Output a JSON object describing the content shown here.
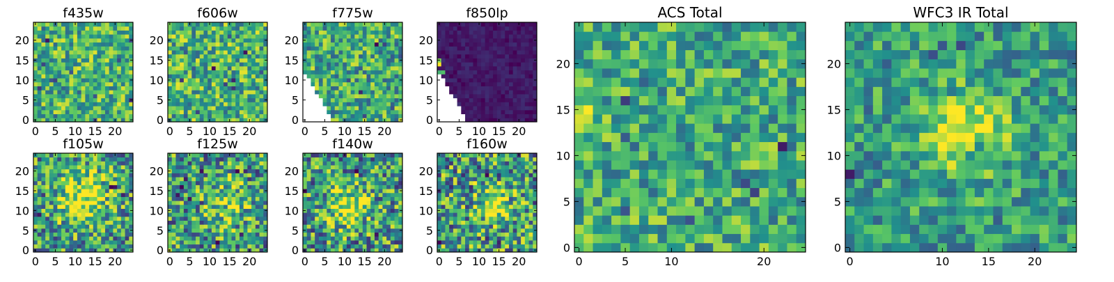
{
  "figure": {
    "colormap": "viridis",
    "colormap_stops": [
      "#440154",
      "#3b528b",
      "#21918c",
      "#5ec962",
      "#fde725"
    ]
  },
  "chart_data": [
    {
      "type": "heatmap",
      "title": "f435w",
      "grid": [
        25,
        25
      ],
      "xlim": [
        0,
        24
      ],
      "ylim": [
        0,
        24
      ],
      "xticks": [
        0,
        5,
        10,
        15,
        20
      ],
      "yticks": [
        0,
        5,
        10,
        15,
        20
      ],
      "seed": 11,
      "character": "uniform noise, mostly green-yellow",
      "mean": 0.66,
      "amplitude": 0.3,
      "blob": null
    },
    {
      "type": "heatmap",
      "title": "f606w",
      "grid": [
        25,
        25
      ],
      "xlim": [
        0,
        24
      ],
      "ylim": [
        0,
        24
      ],
      "xticks": [
        0,
        5,
        10,
        15,
        20
      ],
      "yticks": [
        0,
        5,
        10,
        15,
        20
      ],
      "seed": 23,
      "character": "uniform noise, mostly green-yellow",
      "mean": 0.65,
      "amplitude": 0.32,
      "blob": null
    },
    {
      "type": "heatmap",
      "title": "f775w",
      "grid": [
        25,
        25
      ],
      "xlim": [
        0,
        24
      ],
      "ylim": [
        0,
        24
      ],
      "xticks": [
        0,
        5,
        10,
        15,
        20
      ],
      "yticks": [
        0,
        5,
        10,
        15,
        20
      ],
      "seed": 37,
      "character": "noise with white empty wedge at lower-left",
      "mean": 0.62,
      "amplitude": 0.32,
      "blob": null,
      "mask": "lower-left-wedge",
      "mask_params": {
        "x_max": 7,
        "y_max": 12
      }
    },
    {
      "type": "heatmap",
      "title": "f850lp",
      "grid": [
        25,
        25
      ],
      "xlim": [
        0,
        24
      ],
      "ylim": [
        0,
        24
      ],
      "xticks": [
        0,
        5,
        10,
        15,
        20
      ],
      "yticks": [
        0,
        5,
        10,
        15,
        20
      ],
      "seed": 41,
      "character": "dark purple, bright pixels near wedge edge",
      "mean": 0.08,
      "amplitude": 0.06,
      "blob": null,
      "mask": "lower-left-wedge",
      "mask_params": {
        "x_max": 7,
        "y_max": 12
      },
      "bright_pixels": [
        [
          0,
          14,
          1.0
        ],
        [
          6,
          1,
          1.0
        ],
        [
          5,
          0,
          0.85
        ],
        [
          0,
          15,
          0.8
        ],
        [
          1,
          12,
          0.7
        ],
        [
          0,
          12,
          0.65
        ]
      ]
    },
    {
      "type": "heatmap",
      "title": "f105w",
      "grid": [
        25,
        25
      ],
      "xlim": [
        0,
        24
      ],
      "ylim": [
        0,
        24
      ],
      "xticks": [
        0,
        5,
        10,
        15,
        20
      ],
      "yticks": [
        0,
        5,
        10,
        15,
        20
      ],
      "seed": 53,
      "character": "noise with central bright source",
      "mean": 0.55,
      "amplitude": 0.38,
      "blob": {
        "x": 12,
        "y": 13,
        "sigma": 4.5,
        "amp": 0.45
      }
    },
    {
      "type": "heatmap",
      "title": "f125w",
      "grid": [
        25,
        25
      ],
      "xlim": [
        0,
        24
      ],
      "ylim": [
        0,
        24
      ],
      "xticks": [
        0,
        5,
        10,
        15,
        20
      ],
      "yticks": [
        0,
        5,
        10,
        15,
        20
      ],
      "seed": 67,
      "character": "noise with faint central source",
      "mean": 0.55,
      "amplitude": 0.4,
      "blob": {
        "x": 14,
        "y": 12,
        "sigma": 3.5,
        "amp": 0.35
      }
    },
    {
      "type": "heatmap",
      "title": "f140w",
      "grid": [
        25,
        25
      ],
      "xlim": [
        0,
        24
      ],
      "ylim": [
        0,
        24
      ],
      "xticks": [
        0,
        5,
        10,
        15,
        20
      ],
      "yticks": [
        0,
        5,
        10,
        15,
        20
      ],
      "seed": 79,
      "character": "noise with central source",
      "mean": 0.55,
      "amplitude": 0.4,
      "blob": {
        "x": 11,
        "y": 11,
        "sigma": 3.5,
        "amp": 0.4
      }
    },
    {
      "type": "heatmap",
      "title": "f160w",
      "grid": [
        25,
        25
      ],
      "xlim": [
        0,
        24
      ],
      "ylim": [
        0,
        24
      ],
      "xticks": [
        0,
        5,
        10,
        15,
        20
      ],
      "yticks": [
        0,
        5,
        10,
        15,
        20
      ],
      "seed": 83,
      "character": "noise with vertical central source",
      "mean": 0.55,
      "amplitude": 0.42,
      "blob": {
        "x": 14,
        "y": 12,
        "sigma": 3.2,
        "amp": 0.45
      }
    },
    {
      "type": "heatmap",
      "title": "ACS Total",
      "grid": [
        25,
        25
      ],
      "xlim": [
        0,
        24
      ],
      "ylim": [
        0,
        24
      ],
      "xticks": [
        0,
        5,
        10,
        20
      ],
      "yticks": [
        0,
        5,
        10,
        15,
        20
      ],
      "seed": 97,
      "character": "green noise, bright patch left edge",
      "mean": 0.62,
      "amplitude": 0.28,
      "blob": {
        "x": 0.5,
        "y": 14,
        "sigma": 1.3,
        "amp": 0.45
      }
    },
    {
      "type": "heatmap",
      "title": "WFC3 IR Total",
      "grid": [
        25,
        25
      ],
      "xlim": [
        0,
        24
      ],
      "ylim": [
        0,
        24
      ],
      "xticks": [
        0,
        10,
        15,
        20
      ],
      "yticks": [
        0,
        5,
        10,
        15,
        20
      ],
      "seed": 101,
      "character": "green noise with bright central source",
      "mean": 0.55,
      "amplitude": 0.26,
      "blob": {
        "x": 12.5,
        "y": 12.5,
        "sigma": 3.2,
        "amp": 0.45
      }
    }
  ]
}
